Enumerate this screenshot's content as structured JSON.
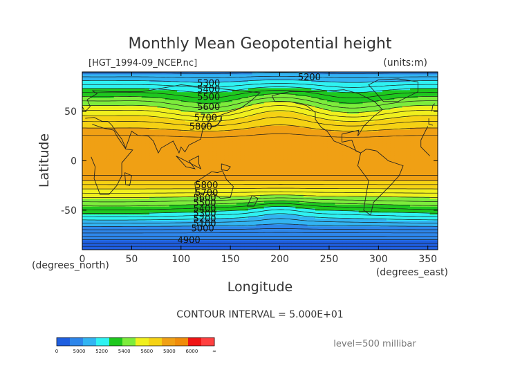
{
  "chart_data": {
    "type": "heatmap",
    "title": "Monthly Mean Geopotential height",
    "file_label": "[HGT_1994-09_NCEP.nc]",
    "units_label": "(units:m)",
    "xlabel": "Longitude",
    "ylabel": "Latitude",
    "x_units": "(degrees_east)",
    "y_units": "(degrees_north)",
    "xlim": [
      0,
      360
    ],
    "ylim": [
      -90,
      90
    ],
    "x_ticks": [
      0,
      50,
      100,
      150,
      200,
      250,
      300,
      350
    ],
    "y_ticks": [
      -50,
      0,
      50
    ],
    "contour_interval_text": "CONTOUR INTERVAL = 5.000E+01",
    "level_text": "level=500 millibar",
    "contour_labels": [
      {
        "text": "5200",
        "lon": 230,
        "lat": 85
      },
      {
        "text": "5300",
        "lon": 128,
        "lat": 79
      },
      {
        "text": "5400",
        "lon": 128,
        "lat": 73
      },
      {
        "text": "5500",
        "lon": 128,
        "lat": 65
      },
      {
        "text": "5600",
        "lon": 128,
        "lat": 55
      },
      {
        "text": "5700",
        "lon": 125,
        "lat": 44
      },
      {
        "text": "5800",
        "lon": 120,
        "lat": 35
      },
      {
        "text": "5800",
        "lon": 126,
        "lat": -24
      },
      {
        "text": "5700",
        "lon": 126,
        "lat": -32
      },
      {
        "text": "5600",
        "lon": 124,
        "lat": -37
      },
      {
        "text": "5500",
        "lon": 124,
        "lat": -42
      },
      {
        "text": "5400",
        "lon": 124,
        "lat": -48
      },
      {
        "text": "5300",
        "lon": 124,
        "lat": -53
      },
      {
        "text": "5200",
        "lon": 124,
        "lat": -58
      },
      {
        "text": "5100",
        "lon": 124,
        "lat": -63
      },
      {
        "text": "5000",
        "lon": 122,
        "lat": -68
      },
      {
        "text": "4900",
        "lon": 108,
        "lat": -80
      }
    ],
    "colorbar": {
      "tick_labels": [
        "0",
        "5000",
        "5200",
        "5400",
        "5600",
        "5800",
        "6000",
        "∞"
      ],
      "colors": [
        "#1f5fe0",
        "#2e86ea",
        "#32b4f2",
        "#2ff2f2",
        "#1ec81e",
        "#7dec3c",
        "#f0f01e",
        "#f5d214",
        "#f0a014",
        "#f08c0a",
        "#f01414",
        "#ff4040"
      ]
    },
    "bands": [
      {
        "min": 0,
        "max": 5000,
        "color": "#1f5fe0"
      },
      {
        "min": 5000,
        "max": 5200,
        "color": "#2e86ea"
      },
      {
        "min": 5200,
        "max": 5300,
        "color": "#32b4f2"
      },
      {
        "min": 5300,
        "max": 5400,
        "color": "#2ff2f2"
      },
      {
        "min": 5400,
        "max": 5500,
        "color": "#1ec81e"
      },
      {
        "min": 5500,
        "max": 5600,
        "color": "#7dec3c"
      },
      {
        "min": 5600,
        "max": 5700,
        "color": "#f0f01e"
      },
      {
        "min": 5700,
        "max": 5800,
        "color": "#f5d214"
      },
      {
        "min": 5800,
        "max": 6000,
        "color": "#f0a014"
      }
    ]
  }
}
